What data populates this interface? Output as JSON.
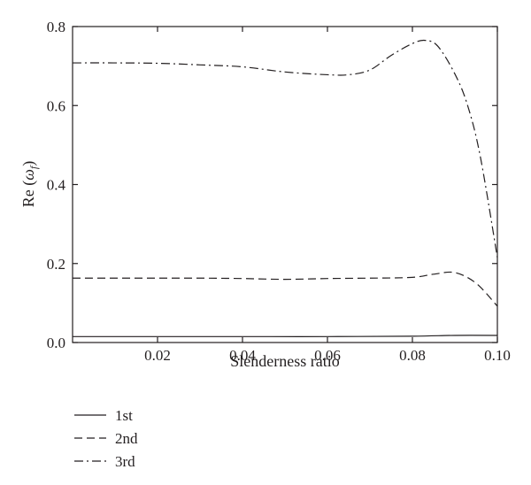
{
  "chart_data": {
    "type": "line",
    "title": "",
    "xlabel": "Slenderness ratio",
    "ylabel": "Re (ω_f)",
    "ylabel_main": "Re (",
    "ylabel_symbol": "ω",
    "ylabel_sub": "f",
    "ylabel_close": ")",
    "xlim": [
      0.0,
      0.1
    ],
    "ylim": [
      0.0,
      0.8
    ],
    "x_ticks": [
      0.02,
      0.04,
      0.06,
      0.08,
      0.1
    ],
    "x_tick_labels": [
      "0.02",
      "0.04",
      "0.06",
      "0.08",
      "0.10"
    ],
    "y_ticks": [
      0.0,
      0.2,
      0.4,
      0.6,
      0.8
    ],
    "y_tick_labels": [
      "0.0",
      "0.2",
      "0.4",
      "0.6",
      "0.8"
    ],
    "grid": false,
    "legend_position": "below",
    "series": [
      {
        "name": "1st",
        "dash": "solid",
        "x": [
          0.0,
          0.02,
          0.04,
          0.06,
          0.08,
          0.09,
          0.1
        ],
        "y": [
          0.015,
          0.015,
          0.015,
          0.015,
          0.016,
          0.018,
          0.018
        ]
      },
      {
        "name": "2nd",
        "dash": "dashed",
        "x": [
          0.0,
          0.01,
          0.02,
          0.03,
          0.04,
          0.05,
          0.06,
          0.07,
          0.08,
          0.085,
          0.09,
          0.095,
          0.1
        ],
        "y": [
          0.163,
          0.163,
          0.163,
          0.163,
          0.162,
          0.16,
          0.162,
          0.163,
          0.165,
          0.173,
          0.177,
          0.15,
          0.092
        ]
      },
      {
        "name": "3rd",
        "dash": "dashdot",
        "x": [
          0.0,
          0.01,
          0.02,
          0.03,
          0.04,
          0.05,
          0.06,
          0.065,
          0.07,
          0.075,
          0.08,
          0.083,
          0.086,
          0.09,
          0.093,
          0.096,
          0.1
        ],
        "y": [
          0.708,
          0.708,
          0.707,
          0.703,
          0.698,
          0.685,
          0.678,
          0.678,
          0.69,
          0.727,
          0.757,
          0.765,
          0.75,
          0.68,
          0.6,
          0.47,
          0.215
        ]
      }
    ]
  }
}
